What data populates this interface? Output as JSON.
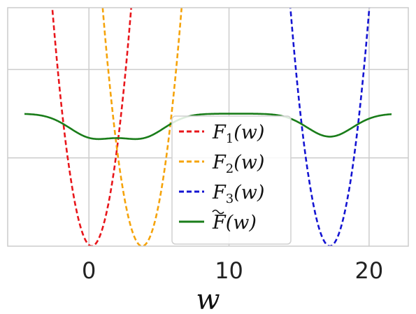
{
  "chart_data": {
    "type": "line",
    "title": "",
    "xlabel": "w",
    "ylabel": "",
    "xlim": [
      -5.8,
      22.8
    ],
    "ylim": [
      0,
      1.35
    ],
    "xticks": [
      0,
      10,
      20
    ],
    "xtick_labels": [
      "0",
      "10",
      "20"
    ],
    "grid": true,
    "legend_position": "lower-center",
    "series": [
      {
        "name": "F_1(w)",
        "legend_main": "F",
        "legend_sub": "1",
        "legend_arg": "(w)",
        "style": "dashed",
        "color": "#e8161b",
        "center": 0.2,
        "curvature": 0.17
      },
      {
        "name": "F_2(w)",
        "legend_main": "F",
        "legend_sub": "2",
        "legend_arg": "(w)",
        "style": "dashed",
        "color": "#f5a30a",
        "center": 3.8,
        "curvature": 0.17
      },
      {
        "name": "F_3(w)",
        "legend_main": "F",
        "legend_sub": "3",
        "legend_arg": "(w)",
        "style": "dashed",
        "color": "#1414d2",
        "center": 17.2,
        "curvature": 0.17
      },
      {
        "name": "~F(w)",
        "legend_main": "F",
        "legend_sub": "",
        "legend_arg": "(w)",
        "style": "solid",
        "color": "#1a7d1a",
        "tilde": true,
        "x_range": [
          -4.6,
          21.6
        ],
        "plateau": 0.75,
        "dip_depth": 0.13,
        "dip_width": 1.6
      }
    ]
  }
}
